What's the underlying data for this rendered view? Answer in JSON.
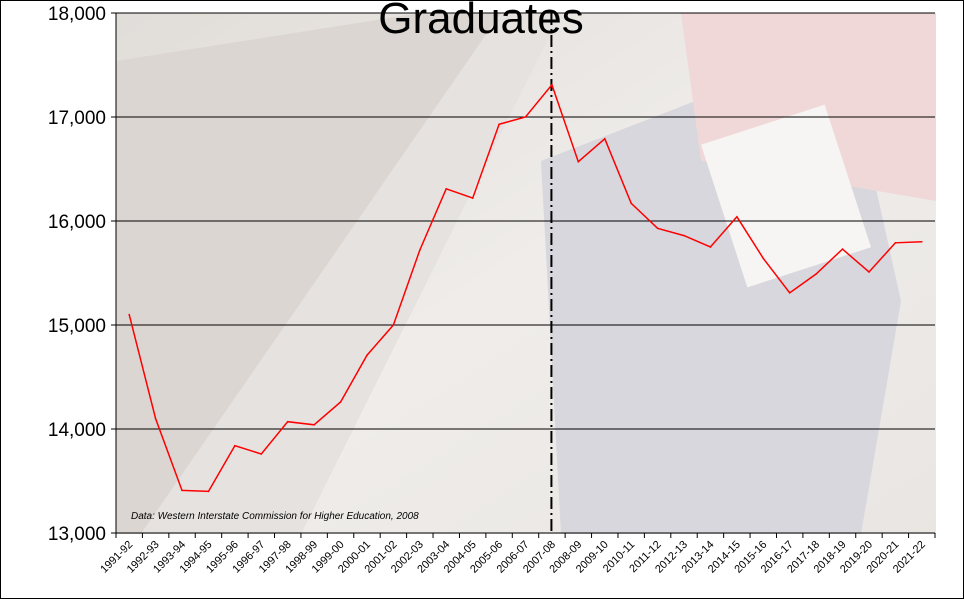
{
  "chart_data": {
    "type": "line",
    "title": "Graduates",
    "xlabel": "",
    "ylabel": "",
    "ylim": [
      13000,
      18000
    ],
    "y_ticks": [
      "13,000",
      "14,000",
      "15,000",
      "16,000",
      "17,000",
      "18,000"
    ],
    "y_tick_values": [
      13000,
      14000,
      15000,
      16000,
      17000,
      18000
    ],
    "grid": true,
    "series_color": "#ff0000",
    "categories": [
      "1991-92",
      "1992-93",
      "1993-94",
      "1994-95",
      "1995-96",
      "1996-97",
      "1997-98",
      "1998-99",
      "1999-00",
      "2000-01",
      "2001-02",
      "2002-03",
      "2003-04",
      "2004-05",
      "2005-06",
      "2006-07",
      "2007-08",
      "2008-09",
      "2009-10",
      "2010-11",
      "2011-12",
      "2012-13",
      "2013-14",
      "2014-15",
      "2015-16",
      "2016-17",
      "2017-18",
      "2018-19",
      "2019-20",
      "2020-21",
      "2021-22"
    ],
    "series": [
      {
        "values": [
          15100,
          14100,
          13410,
          13400,
          13840,
          13760,
          14070,
          14040,
          14260,
          14710,
          15000,
          15720,
          16310,
          16220,
          16930,
          17000,
          17310,
          16570,
          16790,
          16170,
          15930,
          15860,
          15750,
          16040,
          15640,
          15310,
          15490,
          15730,
          15510,
          15790,
          15800
        ]
      }
    ],
    "divider_after_category": "2007-08",
    "annotation": "Data:  Western Interstate Commission for Higher Education, 2008"
  }
}
